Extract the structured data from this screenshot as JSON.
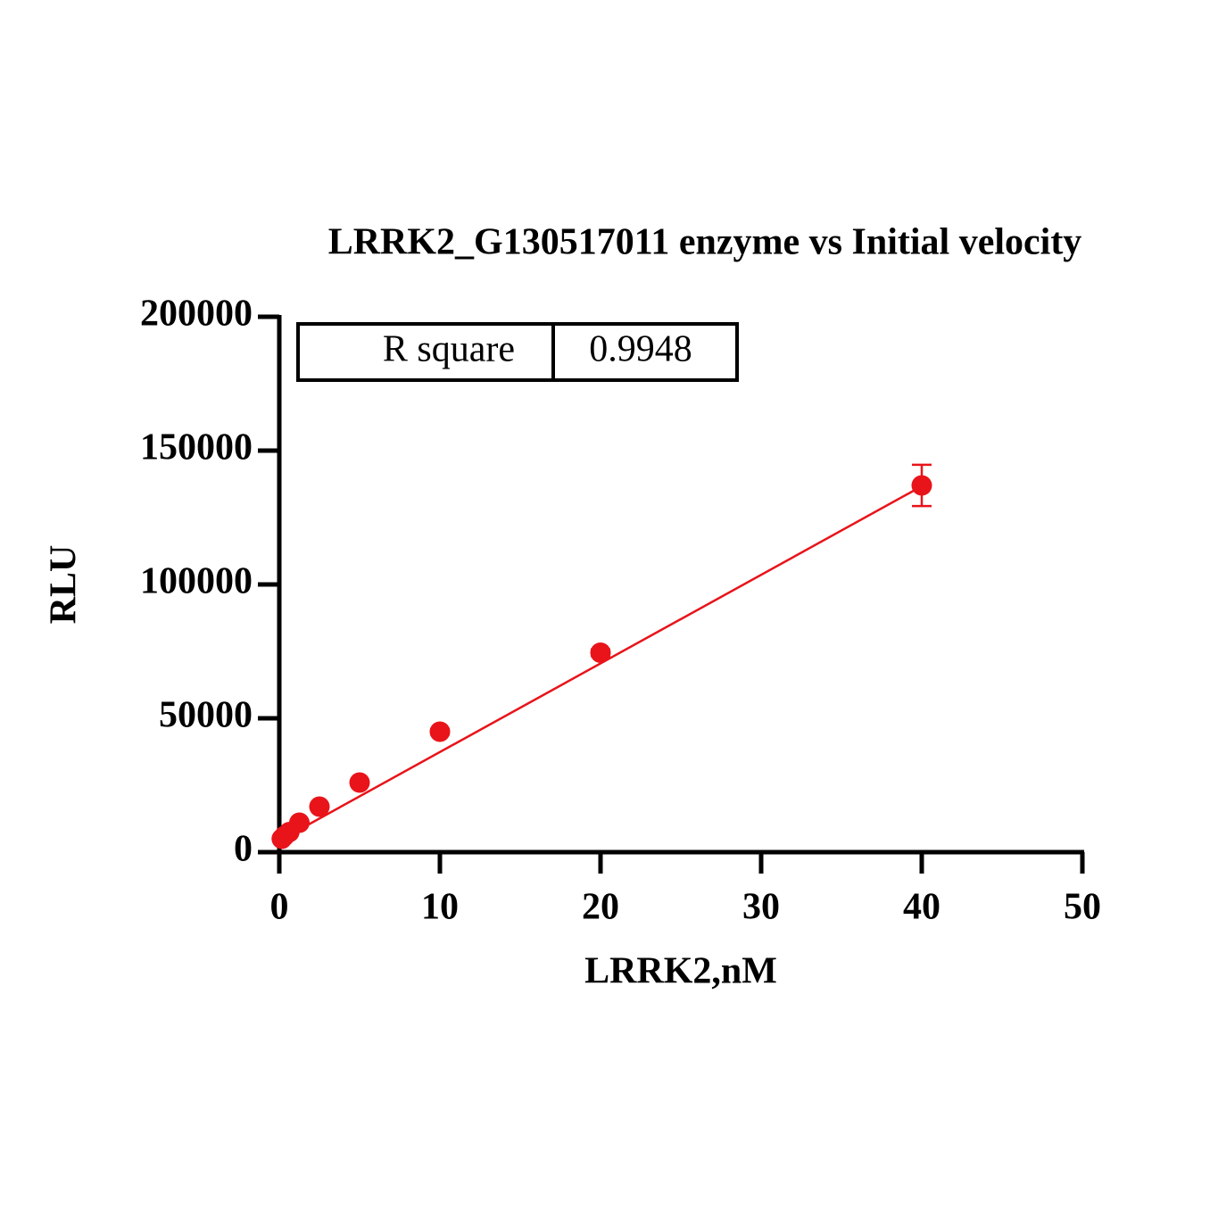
{
  "chart_data": {
    "type": "scatter",
    "title": "LRRK2_G130517011 enzyme vs Initial velocity",
    "x_label": "LRRK2,nM",
    "y_label": "RLU",
    "xlim": [
      0,
      50
    ],
    "xticks": [
      0,
      10,
      20,
      30,
      40,
      50
    ],
    "ylim": [
      0,
      200000
    ],
    "yticks": [
      0,
      50000,
      100000,
      150000,
      200000
    ],
    "series": [
      {
        "color": "#e8141a",
        "x": [
          0.156,
          0.3125,
          0.625,
          1.25,
          2.5,
          5,
          10,
          20,
          40
        ],
        "values": [
          5000,
          6000,
          7500,
          11000,
          17000,
          26000,
          45000,
          74500,
          137000
        ],
        "errors": [
          300,
          300,
          400,
          500,
          600,
          800,
          1000,
          1200,
          7700
        ]
      }
    ],
    "fit": {
      "color": "#e8141a",
      "x": [
        0,
        40
      ],
      "y": [
        4300,
        136700
      ]
    },
    "stats_box": {
      "label": "R square",
      "value": 0.9948
    }
  }
}
